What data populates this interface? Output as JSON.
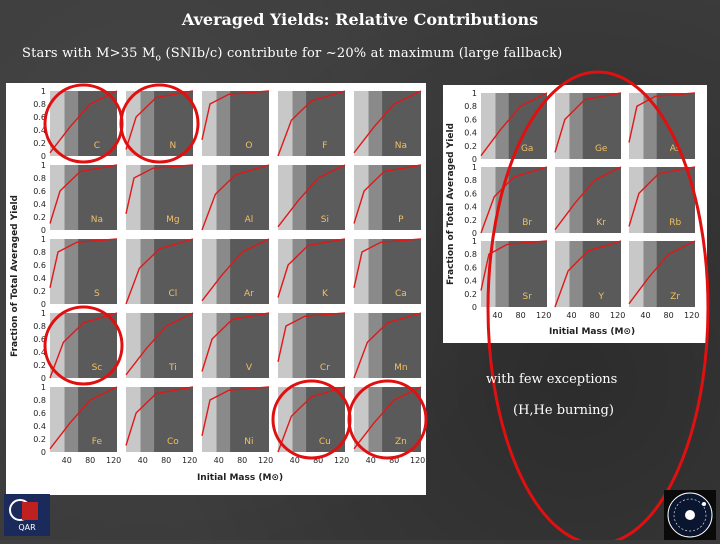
{
  "slide": {
    "title": "Averaged Yields: Relative Contributions",
    "subtitle_prefix": "Stars with M>35 M",
    "subtitle_sub": "o",
    "subtitle_suffix": " (SNIb/c) contribute for ~20% at maximum (large fallback)",
    "note_1": "with few exceptions",
    "note_2": "(H,He burning)",
    "highlight_color": "#e01010",
    "curve_color": "#e01818"
  },
  "left_figure": {
    "ylabel": "Fraction of Total Averaged Yield",
    "xlabel": "Initial Mass (M⊙)",
    "x_ticks": [
      "40",
      "80",
      "120"
    ],
    "y_ticks": [
      "0",
      "0.2",
      "0.4",
      "0.6",
      "0.8",
      "1"
    ],
    "elements": [
      [
        "C",
        "N",
        "O",
        "F",
        "Na"
      ],
      [
        "Na",
        "Mg",
        "Al",
        "Si",
        "P"
      ],
      [
        "S",
        "Cl",
        "Ar",
        "K",
        "Ca"
      ],
      [
        "Sc",
        "Ti",
        "V",
        "Cr",
        "Mn"
      ],
      [
        "Fe",
        "Co",
        "Ni",
        "Cu",
        "Zn"
      ]
    ],
    "highlighted": [
      "C",
      "N",
      "Sc",
      "Cu",
      "Zn"
    ]
  },
  "right_figure": {
    "ylabel": "Fraction of Total Averaged Yield",
    "xlabel": "Initial Mass (M⊙)",
    "x_ticks": [
      "40",
      "80",
      "120"
    ],
    "y_ticks": [
      "0",
      "0.2",
      "0.4",
      "0.6",
      "0.8",
      "1"
    ],
    "elements": [
      [
        "Ga",
        "Ge",
        "As"
      ],
      [
        "Br",
        "Kr",
        "Rb"
      ],
      [
        "Sr",
        "Y",
        "Zr"
      ]
    ]
  },
  "logo_left_text": "QAR"
}
